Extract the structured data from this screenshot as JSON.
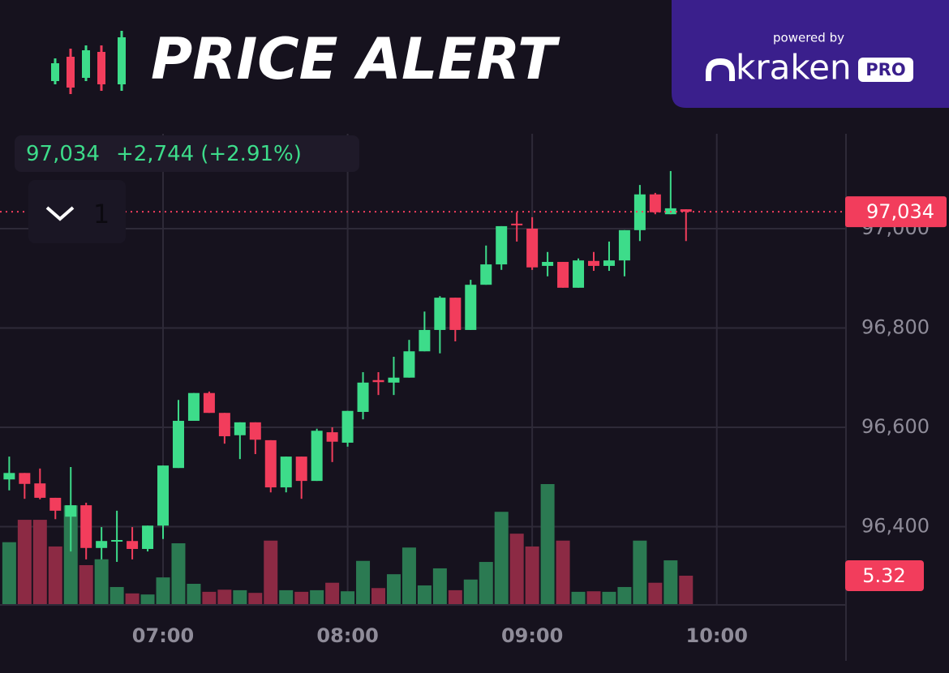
{
  "header": {
    "title": "PRICE ALERT",
    "powered_by": "powered by",
    "brand": "kraken",
    "brand_badge": "PRO"
  },
  "ticker": {
    "price": "97,034",
    "change": "+2,744",
    "change_pct": "(+2.91%)"
  },
  "interval": "1",
  "chart_data": {
    "type": "candlestick",
    "x": [
      "06:10",
      "06:15",
      "06:20",
      "06:25",
      "06:30",
      "06:35",
      "06:40",
      "06:45",
      "06:50",
      "06:55",
      "07:00",
      "07:05",
      "07:10",
      "07:15",
      "07:20",
      "07:25",
      "07:30",
      "07:35",
      "07:40",
      "07:45",
      "07:50",
      "07:55",
      "08:00",
      "08:05",
      "08:10",
      "08:15",
      "08:20",
      "08:25",
      "08:30",
      "08:35",
      "08:40",
      "08:45",
      "08:50",
      "08:55",
      "09:00",
      "09:05",
      "09:10",
      "09:15",
      "09:20",
      "09:25",
      "09:30",
      "09:35",
      "09:40",
      "09:45",
      "09:50"
    ],
    "open": [
      96495,
      96508,
      96487,
      96458,
      96420,
      96443,
      96357,
      96370,
      96371,
      96355,
      96402,
      96518,
      96613,
      96669,
      96629,
      96584,
      96610,
      96574,
      96479,
      96541,
      96492,
      96590,
      96569,
      96631,
      96695,
      96690,
      96700,
      96753,
      96796,
      96861,
      96796,
      96887,
      96928,
      97010,
      97000,
      96925,
      96933,
      96881,
      96935,
      96925,
      96936,
      96997,
      97069,
      97029,
      97039
    ],
    "high": [
      96541,
      96508,
      96517,
      96458,
      96520,
      96448,
      96399,
      96432,
      96399,
      96402,
      96523,
      96655,
      96669,
      96672,
      96629,
      96610,
      96610,
      96574,
      96541,
      96541,
      96597,
      96600,
      96633,
      96711,
      96711,
      96742,
      96776,
      96833,
      96864,
      96861,
      96897,
      96966,
      97005,
      97033,
      97023,
      96953,
      96933,
      96940,
      96953,
      96974,
      96997,
      97088,
      97072,
      97116,
      97039
    ],
    "low": [
      96473,
      96456,
      96455,
      96415,
      96350,
      96334,
      96334,
      96329,
      96334,
      96350,
      96375,
      96518,
      96613,
      96629,
      96567,
      96536,
      96546,
      96469,
      96469,
      96456,
      96492,
      96530,
      96561,
      96616,
      96665,
      96665,
      96700,
      96753,
      96749,
      96773,
      96796,
      96887,
      96917,
      96974,
      96917,
      96904,
      96881,
      96881,
      96915,
      96915,
      96904,
      96975,
      97029,
      97029,
      96975
    ],
    "close": [
      96508,
      96486,
      96458,
      96432,
      96443,
      96357,
      96371,
      96373,
      96355,
      96402,
      96523,
      96613,
      96669,
      96629,
      96582,
      96610,
      96575,
      96479,
      96541,
      96492,
      96593,
      96571,
      96633,
      96690,
      96691,
      96700,
      96753,
      96796,
      96861,
      96796,
      96887,
      96928,
      97005,
      97007,
      96922,
      96933,
      96881,
      96936,
      96925,
      96936,
      96997,
      97069,
      97033,
      97041,
      97034
    ],
    "close_labels": {
      "44": "97,034"
    },
    "volume": [
      11.6,
      15.8,
      15.8,
      10.8,
      18.5,
      7.3,
      8.4,
      3.2,
      2.0,
      1.8,
      5.0,
      11.4,
      3.8,
      2.3,
      2.7,
      2.6,
      2.1,
      11.9,
      2.6,
      2.3,
      2.6,
      4.0,
      2.4,
      8.1,
      3.0,
      5.6,
      10.6,
      3.5,
      6.7,
      2.6,
      4.6,
      7.9,
      17.3,
      13.2,
      10.8,
      22.5,
      11.9,
      2.3,
      2.4,
      2.3,
      3.2,
      11.9,
      4.0,
      8.2,
      5.32
    ],
    "up_color": "#3ddc8a",
    "down_color": "#f23d5c",
    "volume_up_color": "#2b7a52",
    "volume_down_color": "#8c2a44",
    "ylim": [
      96244,
      97191
    ],
    "yticks": [
      {
        "value": 96400,
        "label": "96,400"
      },
      {
        "value": 96600,
        "label": "96,600"
      },
      {
        "value": 96800,
        "label": "96,800"
      },
      {
        "value": 97000,
        "label": "97,000"
      }
    ],
    "xlim": [
      "06:07",
      "10:42"
    ],
    "xticks": [
      "07:00",
      "08:00",
      "09:00",
      "10:00"
    ],
    "grid": true
  }
}
